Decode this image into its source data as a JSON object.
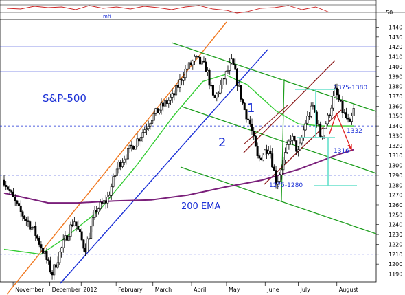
{
  "chart_data": {
    "type": "candlestick",
    "title": "",
    "series_label": "S&P-500",
    "y_ticks": [
      1190,
      1200,
      1210,
      1220,
      1230,
      1240,
      1250,
      1260,
      1270,
      1280,
      1290,
      1300,
      1310,
      1320,
      1330,
      1340,
      1350,
      1360,
      1370,
      1380,
      1390,
      1400,
      1410,
      1420,
      1430,
      1440
    ],
    "ylim": [
      1182,
      1448
    ],
    "x_ticks": [
      "November",
      "December",
      "2012",
      "February",
      "March",
      "April",
      "May",
      "June",
      "July",
      "August"
    ],
    "indicator": {
      "label": "mfi",
      "level": "50"
    },
    "annotations": {
      "wave1": "1",
      "wave2": "2",
      "resistance_zone": "1375-1380",
      "support_1332": "1332",
      "support_1316": "1316",
      "support_zone": "1275-1280",
      "ema_label": "200 EMA"
    },
    "colors": {
      "price": "#000000",
      "ema200": "#7a1f7a",
      "ema_fast": "#33cc33",
      "channel": "#1e9e1e",
      "trend_blue": "#1a2fd6",
      "trend_orange": "#f07820",
      "wedge": "#8b1a1a",
      "cyan": "#66e0cc",
      "mfi": "#cc2222",
      "arrow": "#e02020"
    },
    "key_closes": [
      {
        "t": 0.0,
        "v": 1285
      },
      {
        "t": 0.04,
        "v": 1255
      },
      {
        "t": 0.08,
        "v": 1235
      },
      {
        "t": 0.11,
        "v": 1210
      },
      {
        "t": 0.13,
        "v": 1190
      },
      {
        "t": 0.16,
        "v": 1220
      },
      {
        "t": 0.19,
        "v": 1245
      },
      {
        "t": 0.22,
        "v": 1215
      },
      {
        "t": 0.25,
        "v": 1255
      },
      {
        "t": 0.28,
        "v": 1265
      },
      {
        "t": 0.31,
        "v": 1300
      },
      {
        "t": 0.34,
        "v": 1315
      },
      {
        "t": 0.37,
        "v": 1330
      },
      {
        "t": 0.4,
        "v": 1348
      },
      {
        "t": 0.43,
        "v": 1360
      },
      {
        "t": 0.46,
        "v": 1370
      },
      {
        "t": 0.49,
        "v": 1395
      },
      {
        "t": 0.52,
        "v": 1408
      },
      {
        "t": 0.55,
        "v": 1398
      },
      {
        "t": 0.57,
        "v": 1365
      },
      {
        "t": 0.6,
        "v": 1390
      },
      {
        "t": 0.62,
        "v": 1405
      },
      {
        "t": 0.65,
        "v": 1360
      },
      {
        "t": 0.67,
        "v": 1340
      },
      {
        "t": 0.69,
        "v": 1305
      },
      {
        "t": 0.72,
        "v": 1320
      },
      {
        "t": 0.74,
        "v": 1282
      },
      {
        "t": 0.76,
        "v": 1305
      },
      {
        "t": 0.78,
        "v": 1330
      },
      {
        "t": 0.8,
        "v": 1312
      },
      {
        "t": 0.82,
        "v": 1345
      },
      {
        "t": 0.84,
        "v": 1360
      },
      {
        "t": 0.86,
        "v": 1330
      },
      {
        "t": 0.88,
        "v": 1348
      },
      {
        "t": 0.9,
        "v": 1375
      },
      {
        "t": 0.92,
        "v": 1355
      },
      {
        "t": 0.94,
        "v": 1340
      },
      {
        "t": 0.95,
        "v": 1356
      }
    ],
    "ema200": [
      {
        "t": 0.0,
        "v": 1272
      },
      {
        "t": 0.12,
        "v": 1262
      },
      {
        "t": 0.2,
        "v": 1262
      },
      {
        "t": 0.3,
        "v": 1264
      },
      {
        "t": 0.4,
        "v": 1265
      },
      {
        "t": 0.5,
        "v": 1270
      },
      {
        "t": 0.6,
        "v": 1278
      },
      {
        "t": 0.7,
        "v": 1285
      },
      {
        "t": 0.8,
        "v": 1296
      },
      {
        "t": 0.9,
        "v": 1310
      },
      {
        "t": 0.95,
        "v": 1316
      }
    ],
    "ema_fast": [
      {
        "t": 0.0,
        "v": 1215
      },
      {
        "t": 0.1,
        "v": 1210
      },
      {
        "t": 0.16,
        "v": 1225
      },
      {
        "t": 0.26,
        "v": 1255
      },
      {
        "t": 0.36,
        "v": 1300
      },
      {
        "t": 0.46,
        "v": 1350
      },
      {
        "t": 0.54,
        "v": 1385
      },
      {
        "t": 0.6,
        "v": 1392
      },
      {
        "t": 0.66,
        "v": 1382
      },
      {
        "t": 0.74,
        "v": 1355
      },
      {
        "t": 0.8,
        "v": 1342
      },
      {
        "t": 0.86,
        "v": 1340
      },
      {
        "t": 0.95,
        "v": 1340
      }
    ]
  }
}
